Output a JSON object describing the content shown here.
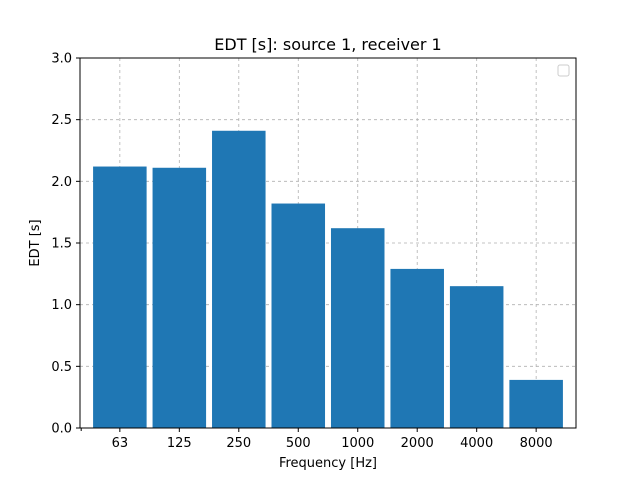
{
  "chart_data": {
    "type": "bar",
    "title": "EDT [s]: source 1, receiver 1",
    "xlabel": "Frequency [Hz]",
    "ylabel": "EDT [s]",
    "categories": [
      "63",
      "125",
      "250",
      "500",
      "1000",
      "2000",
      "4000",
      "8000"
    ],
    "values": [
      2.12,
      2.11,
      2.41,
      1.82,
      1.62,
      1.29,
      1.15,
      0.39
    ],
    "ylim": [
      0,
      3.0
    ],
    "yticks": [
      "0.0",
      "0.5",
      "1.0",
      "1.5",
      "2.0",
      "2.5",
      "3.0"
    ],
    "grid": true,
    "legend": "top-right",
    "bar_color": "#1f77b4",
    "grid_color": "#b0b0b0"
  }
}
